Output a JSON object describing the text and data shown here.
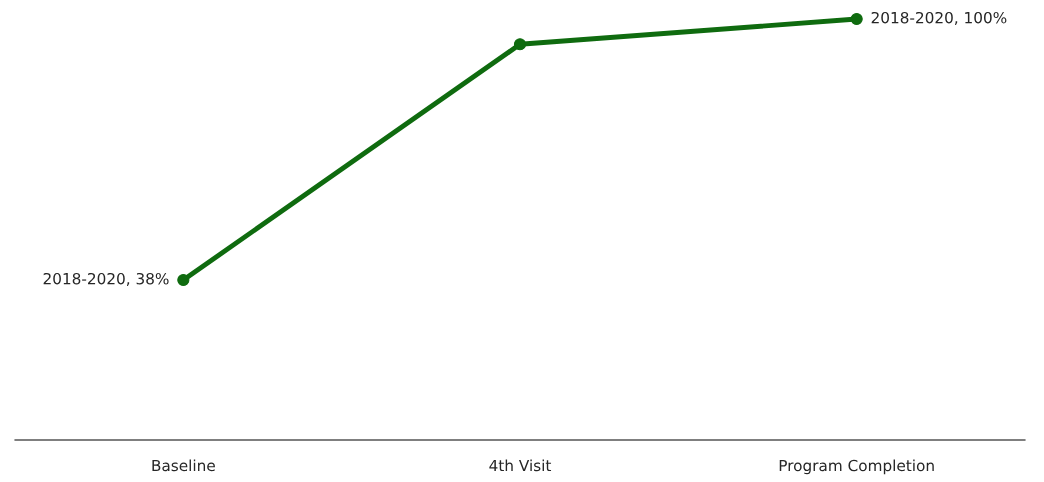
{
  "chart_data": {
    "type": "line",
    "categories": [
      "Baseline",
      "4th Visit",
      "Program Completion"
    ],
    "series": [
      {
        "color": "#0f6b0f",
        "values": [
          38,
          94,
          100
        ],
        "value_labels": [
          "2018-2020, 38%",
          null,
          "2018-2020, 100%"
        ]
      }
    ],
    "tick_labels": "x",
    "grid": false,
    "legend": false,
    "marker": "circle",
    "line_style": "solid"
  }
}
